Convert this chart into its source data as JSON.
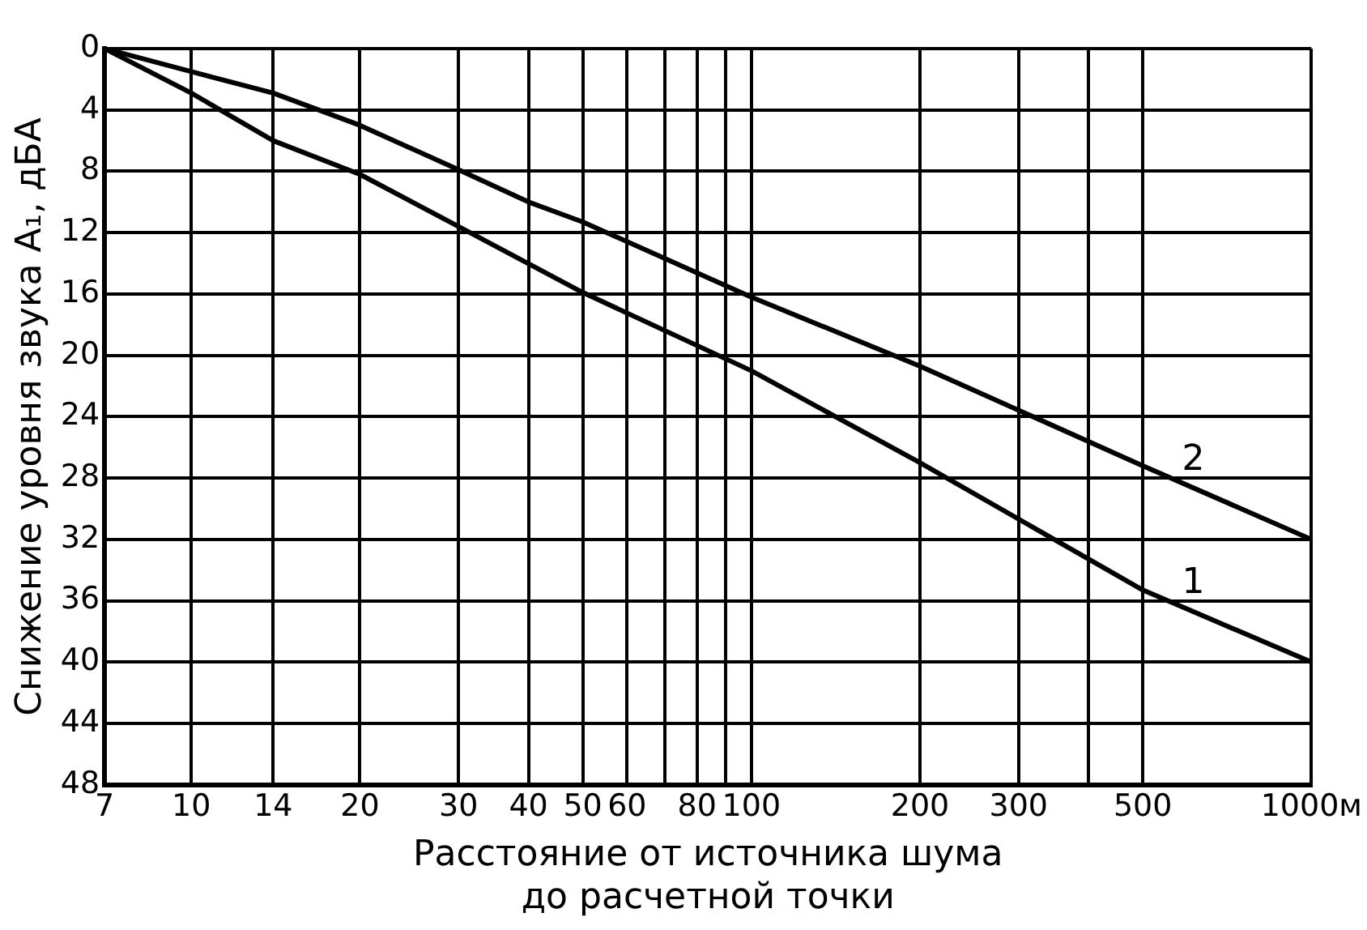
{
  "chart_data": {
    "type": "line",
    "xlabel": "Расстояние от источника шума\nдо расчетной точки",
    "ylabel": "Снижение уровня звука A₁, дБА",
    "log": "x",
    "xlim": [
      7,
      1000
    ],
    "xticks": [
      7,
      10,
      14,
      20,
      30,
      40,
      50,
      60,
      {
        "value": 70,
        "label": null
      },
      80,
      {
        "value": 90,
        "label": null
      },
      100,
      200,
      300,
      {
        "value": 400,
        "label": null
      },
      500,
      {
        "value": 1000,
        "label": "1000м"
      }
    ],
    "ylim": [
      48,
      0
    ],
    "yticks": [
      0,
      4,
      8,
      12,
      16,
      20,
      24,
      28,
      32,
      36,
      40,
      44,
      48
    ],
    "grid": true,
    "legend": false,
    "marker": "none",
    "line_style": "solid",
    "series": [
      {
        "name": "1",
        "color": "#000000",
        "x": [
          7,
          10,
          14,
          20,
          30,
          50,
          100,
          200,
          500,
          1000
        ],
        "values": [
          0,
          2.9,
          6,
          8.2,
          11.6,
          15.9,
          21,
          27,
          35.3,
          40
        ]
      },
      {
        "name": "2",
        "color": "#000000",
        "x": [
          7,
          10,
          14,
          20,
          30,
          40,
          50,
          100,
          200,
          500,
          1000
        ],
        "values": [
          0,
          1.5,
          2.9,
          5,
          7.9,
          10,
          11.3,
          16.2,
          20.7,
          27.2,
          32
        ]
      }
    ]
  }
}
